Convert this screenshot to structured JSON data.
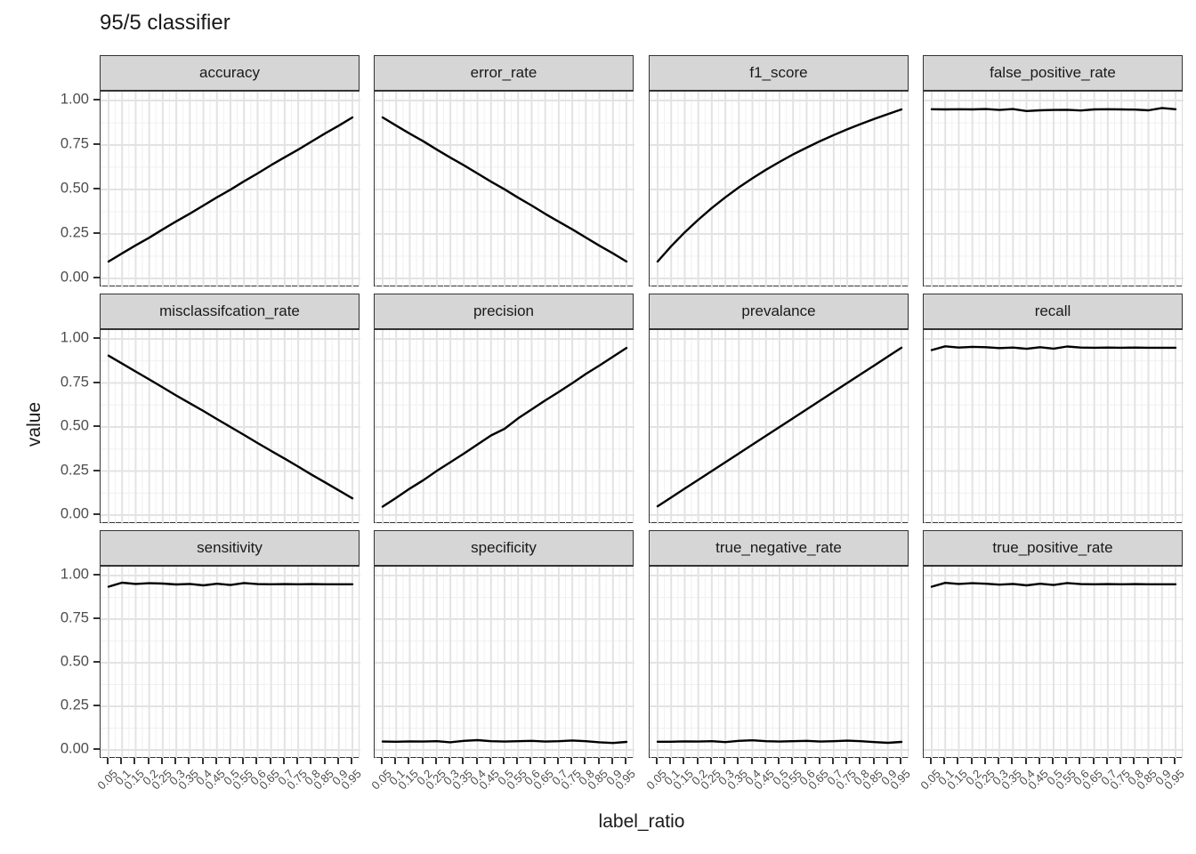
{
  "title": "95/5 classifier",
  "axes": {
    "x_label": "label_ratio",
    "y_label": "value",
    "y_ticks": [
      "1.00",
      "0.75",
      "0.50",
      "0.25",
      "0.00"
    ],
    "x_ticks": [
      "0.05",
      "0.1",
      "0.15",
      "0.2",
      "0.25",
      "0.3",
      "0.35",
      "0.4",
      "0.45",
      "0.5",
      "0.55",
      "0.6",
      "0.65",
      "0.7",
      "0.75",
      "0.8",
      "0.85",
      "0.9",
      "0.95"
    ]
  },
  "colors": {
    "line": "#000000",
    "strip_bg": "#d6d6d6",
    "panel_border": "#333333",
    "grid_major": "#e3e3e3",
    "grid_minor": "#f0f0f0",
    "axis_text": "#4d4d4d",
    "title_text": "#1a1a1a"
  },
  "chart_data": {
    "type": "line",
    "title": "95/5 classifier",
    "xlabel": "label_ratio",
    "ylabel": "value",
    "ylim": [
      0,
      1
    ],
    "grid": true,
    "facet_layout": {
      "rows": 3,
      "cols": 4
    },
    "x": [
      0.05,
      0.1,
      0.15,
      0.2,
      0.25,
      0.3,
      0.35,
      0.4,
      0.45,
      0.5,
      0.55,
      0.6,
      0.65,
      0.7,
      0.75,
      0.8,
      0.85,
      0.9,
      0.95
    ],
    "facets": [
      {
        "name": "accuracy",
        "values": [
          0.095,
          0.141,
          0.186,
          0.229,
          0.276,
          0.321,
          0.364,
          0.41,
          0.456,
          0.499,
          0.546,
          0.59,
          0.637,
          0.681,
          0.724,
          0.77,
          0.816,
          0.859,
          0.905
        ]
      },
      {
        "name": "error_rate",
        "values": [
          0.905,
          0.859,
          0.814,
          0.771,
          0.724,
          0.679,
          0.636,
          0.59,
          0.544,
          0.501,
          0.454,
          0.41,
          0.363,
          0.319,
          0.276,
          0.23,
          0.184,
          0.141,
          0.095
        ]
      },
      {
        "name": "f1_score",
        "values": [
          0.095,
          0.181,
          0.259,
          0.33,
          0.396,
          0.456,
          0.512,
          0.563,
          0.611,
          0.655,
          0.697,
          0.735,
          0.772,
          0.806,
          0.838,
          0.868,
          0.897,
          0.924,
          0.95
        ]
      },
      {
        "name": "false_positive_rate",
        "values": [
          0.951,
          0.95,
          0.951,
          0.95,
          0.952,
          0.947,
          0.952,
          0.941,
          0.945,
          0.947,
          0.948,
          0.944,
          0.95,
          0.951,
          0.95,
          0.949,
          0.945,
          0.958,
          0.951
        ]
      },
      {
        "name": "misclassifcation_rate",
        "values": [
          0.905,
          0.86,
          0.815,
          0.77,
          0.725,
          0.679,
          0.635,
          0.591,
          0.545,
          0.5,
          0.455,
          0.409,
          0.364,
          0.32,
          0.275,
          0.229,
          0.185,
          0.14,
          0.095
        ]
      },
      {
        "name": "precision",
        "values": [
          0.048,
          0.098,
          0.15,
          0.198,
          0.251,
          0.3,
          0.349,
          0.401,
          0.452,
          0.49,
          0.549,
          0.6,
          0.651,
          0.699,
          0.749,
          0.801,
          0.849,
          0.899,
          0.949
        ]
      },
      {
        "name": "prevalance",
        "values": [
          0.05,
          0.1,
          0.15,
          0.2,
          0.25,
          0.3,
          0.35,
          0.4,
          0.45,
          0.5,
          0.55,
          0.6,
          0.65,
          0.7,
          0.75,
          0.8,
          0.85,
          0.9,
          0.95
        ]
      },
      {
        "name": "recall",
        "values": [
          0.937,
          0.958,
          0.951,
          0.955,
          0.953,
          0.948,
          0.951,
          0.944,
          0.953,
          0.945,
          0.957,
          0.951,
          0.95,
          0.951,
          0.95,
          0.951,
          0.95,
          0.95,
          0.95
        ]
      },
      {
        "name": "sensitivity",
        "values": [
          0.936,
          0.959,
          0.952,
          0.956,
          0.954,
          0.949,
          0.952,
          0.944,
          0.953,
          0.946,
          0.957,
          0.951,
          0.95,
          0.951,
          0.95,
          0.951,
          0.95,
          0.95,
          0.95
        ]
      },
      {
        "name": "specificity",
        "values": [
          0.048,
          0.047,
          0.049,
          0.048,
          0.05,
          0.044,
          0.052,
          0.056,
          0.05,
          0.048,
          0.05,
          0.052,
          0.048,
          0.05,
          0.054,
          0.05,
          0.044,
          0.04,
          0.046
        ]
      },
      {
        "name": "true_negative_rate",
        "values": [
          0.047,
          0.047,
          0.049,
          0.048,
          0.05,
          0.045,
          0.052,
          0.055,
          0.05,
          0.048,
          0.05,
          0.052,
          0.048,
          0.05,
          0.053,
          0.05,
          0.045,
          0.041,
          0.046
        ]
      },
      {
        "name": "true_positive_rate",
        "values": [
          0.936,
          0.958,
          0.952,
          0.956,
          0.953,
          0.948,
          0.952,
          0.944,
          0.953,
          0.946,
          0.957,
          0.951,
          0.95,
          0.951,
          0.95,
          0.951,
          0.95,
          0.95,
          0.95
        ]
      }
    ]
  }
}
